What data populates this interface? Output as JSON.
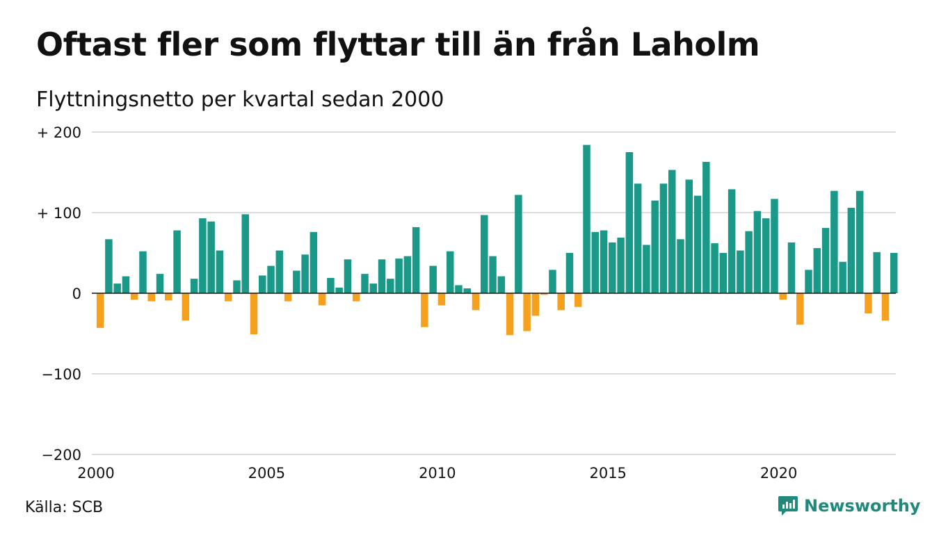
{
  "title": "Oftast fler som flyttar till än från Laholm",
  "subtitle": "Flyttningsnetto per kvartal sedan 2000",
  "source": "Källa: SCB",
  "brand": {
    "name": "Newsworthy",
    "icon": "newsworthy-logo-icon"
  },
  "colors": {
    "positive": "#1a9988",
    "negative": "#f5a11e",
    "grid": "#dcdcdc",
    "zero_line": "#111111",
    "brand": "#1f8a7c"
  },
  "chart_data": {
    "type": "bar",
    "x_start": "2000 Q1",
    "x_tick_labels": [
      "2000",
      "2005",
      "2010",
      "2015",
      "2020"
    ],
    "y_tick_labels": [
      "+ 200",
      "+ 100",
      "0",
      "−100",
      "−200"
    ],
    "y_ticks": [
      200,
      100,
      0,
      -100,
      -200
    ],
    "ylim": [
      -200,
      200
    ],
    "grid": true,
    "values": [
      -43,
      67,
      12,
      21,
      -8,
      52,
      -10,
      24,
      -9,
      78,
      -34,
      18,
      93,
      89,
      53,
      -10,
      16,
      98,
      -51,
      22,
      34,
      53,
      -10,
      28,
      48,
      76,
      -15,
      19,
      7,
      42,
      -10,
      24,
      12,
      42,
      18,
      43,
      46,
      82,
      -42,
      34,
      -15,
      52,
      10,
      6,
      -21,
      97,
      46,
      21,
      -52,
      122,
      -47,
      -28,
      -2,
      29,
      -21,
      50,
      -17,
      184,
      76,
      78,
      63,
      69,
      175,
      136,
      60,
      115,
      136,
      153,
      67,
      141,
      121,
      163,
      62,
      50,
      129,
      53,
      77,
      102,
      93,
      117,
      -8,
      63,
      -39,
      29,
      56,
      81,
      127,
      39,
      106,
      127,
      -25,
      51,
      -34,
      50
    ]
  }
}
